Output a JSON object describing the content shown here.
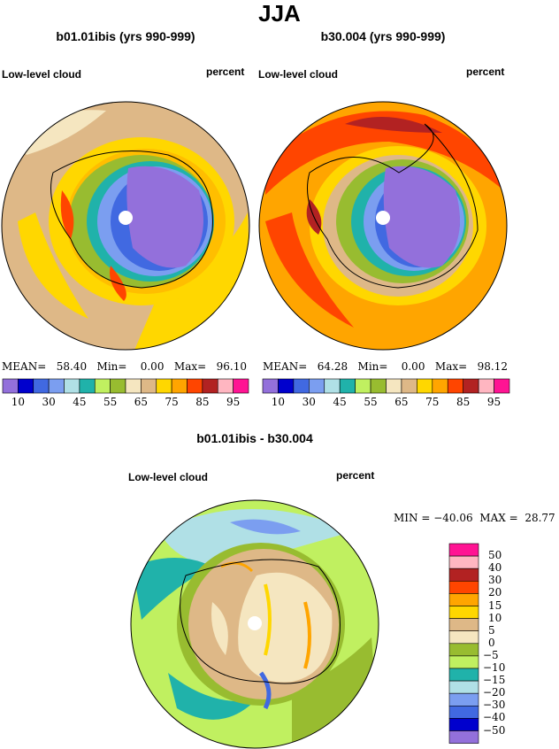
{
  "title": "JJA",
  "panels": [
    {
      "title": "b01.01ibis (yrs 990-999)",
      "left_label": "Low-level cloud",
      "right_label": "percent",
      "stats": {
        "mean_label": "MEAN=",
        "mean": "58.40",
        "min_label": "Min=",
        "min": "0.00",
        "max_label": "Max=",
        "max": "96.10"
      }
    },
    {
      "title": "b30.004 (yrs 990-999)",
      "left_label": "Low-level cloud",
      "right_label": "percent",
      "stats": {
        "mean_label": "MEAN=",
        "mean": "64.28",
        "min_label": "Min=",
        "min": "0.00",
        "max_label": "Max=",
        "max": "98.12"
      }
    }
  ],
  "diff_panel": {
    "title": "b01.01ibis - b30.004",
    "left_label": "Low-level cloud",
    "right_label": "percent",
    "min_label": "MIN =",
    "min": "−40.06",
    "max_label": "MAX =",
    "max": "28.77"
  },
  "chart_data": {
    "type": "heatmap",
    "projection": "south-polar-stereographic",
    "abs_colorbar": {
      "colors": [
        "#9370db",
        "#0000cd",
        "#4169e1",
        "#7b9ef0",
        "#b0e0e6",
        "#20b2aa",
        "#c0f060",
        "#98bc30",
        "#f5e6c0",
        "#deb887",
        "#ffd700",
        "#ffa500",
        "#ff4500",
        "#b22222",
        "#ffb6c1",
        "#ff1493"
      ],
      "tick_labels": [
        "10",
        "30",
        "45",
        "55",
        "65",
        "75",
        "85",
        "95"
      ]
    },
    "diff_colorbar": {
      "colors": [
        "#ff1493",
        "#ffb6c1",
        "#b22222",
        "#ff4500",
        "#ffa500",
        "#ffd700",
        "#deb887",
        "#f5e6c0",
        "#98bc30",
        "#c0f060",
        "#20b2aa",
        "#b0e0e6",
        "#7b9ef0",
        "#4169e1",
        "#0000cd",
        "#9370db"
      ],
      "tick_labels": [
        "50",
        "40",
        "30",
        "20",
        "15",
        "10",
        "5",
        "0",
        "−5",
        "−10",
        "−15",
        "−20",
        "−30",
        "−40",
        "−50"
      ]
    }
  }
}
